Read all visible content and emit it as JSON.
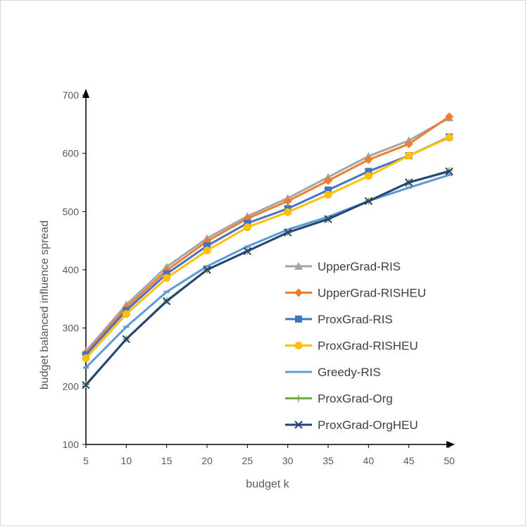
{
  "chart_data": {
    "type": "line",
    "title": "",
    "xlabel": "budget k",
    "ylabel": "budget balanced influence spread",
    "x": [
      5,
      10,
      15,
      20,
      25,
      30,
      35,
      40,
      45,
      50
    ],
    "x_tick_labels": [
      "5",
      "10",
      "15",
      "20",
      "25",
      "30",
      "35",
      "40",
      "45",
      "50"
    ],
    "y_tick_values": [
      100,
      200,
      300,
      400,
      500,
      600,
      700
    ],
    "y_tick_labels": [
      "100",
      "200",
      "300",
      "400",
      "500",
      "600",
      "700"
    ],
    "ylim": [
      100,
      700
    ],
    "xlim": [
      5,
      50
    ],
    "grid": false,
    "legend_position": "right",
    "series": [
      {
        "name": "UpperGrad-RIS",
        "color": "#a5a5a5",
        "marker": "triangle",
        "values": [
          260,
          340,
          405,
          454,
          492,
          523,
          559,
          595,
          622,
          661
        ]
      },
      {
        "name": "UpperGrad-RISHEU",
        "color": "#ed7d31",
        "marker": "diamond",
        "values": [
          257,
          335,
          399,
          449,
          488,
          518,
          553,
          589,
          616,
          663
        ]
      },
      {
        "name": "ProxGrad-RIS",
        "color": "#4472c4",
        "marker": "square",
        "values": [
          254,
          330,
          393,
          441,
          480,
          505,
          537,
          569,
          596,
          628
        ]
      },
      {
        "name": "ProxGrad-RISHEU",
        "color": "#ffc000",
        "marker": "circle",
        "values": [
          248,
          324,
          386,
          433,
          473,
          499,
          529,
          561,
          596,
          627
        ]
      },
      {
        "name": "Greedy-RIS",
        "color": "#5b9bd5",
        "marker": "dash",
        "values": [
          232,
          302,
          362,
          406,
          440,
          469,
          491,
          518,
          541,
          563
        ]
      },
      {
        "name": "ProxGrad-Org",
        "color": "#70ad47",
        "marker": "plus",
        "values": [
          203,
          281,
          347,
          400,
          432,
          464,
          487,
          518,
          550,
          570
        ]
      },
      {
        "name": "ProxGrad-OrgHEU",
        "color": "#264478",
        "marker": "x",
        "values": [
          202,
          281,
          346,
          400,
          432,
          464,
          487,
          518,
          550,
          569
        ]
      }
    ]
  }
}
